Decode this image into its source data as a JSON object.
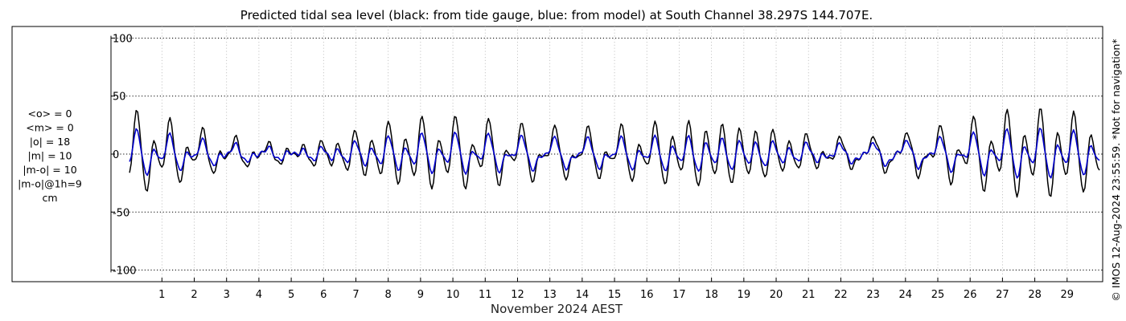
{
  "chart_data": {
    "type": "line",
    "title": "Predicted tidal sea level (black: from tide gauge, blue: from model) at South Channel 38.297S 144.707E.",
    "xlabel": "November 2024 AEST",
    "ylabel": "",
    "ylim": [
      -110,
      110
    ],
    "xlim": [
      -0.65,
      30.1
    ],
    "yticks": [
      -100,
      -50,
      0,
      50,
      100
    ],
    "ytick_labels": [
      "-100",
      "-50",
      "0",
      "50",
      "100"
    ],
    "xticks": [
      1,
      2,
      3,
      4,
      5,
      6,
      7,
      8,
      9,
      10,
      11,
      12,
      13,
      14,
      15,
      16,
      17,
      18,
      19,
      20,
      21,
      22,
      23,
      24,
      25,
      26,
      27,
      28,
      29
    ],
    "xtick_labels": [
      "1",
      "2",
      "3",
      "4",
      "5",
      "6",
      "7",
      "8",
      "9",
      "10",
      "11",
      "12",
      "13",
      "14",
      "15",
      "16",
      "17",
      "18",
      "19",
      "20",
      "21",
      "22",
      "23",
      "24",
      "25",
      "26",
      "27",
      "28",
      "29"
    ],
    "grid": true,
    "data_start_day": 0.0,
    "data_end_day": 30.0,
    "data_step_days": 0.05,
    "series": [
      {
        "color": "#000000",
        "constituents": {
          "M2_base": 15,
          "M2_mod": 9,
          "S2": 4,
          "K1": 9,
          "O1": 6,
          "M4": 2.5,
          "M2_period_days": 0.5175,
          "S2_period_days": 0.5,
          "K1_period_days": 0.9973,
          "O1_period_days": 1.0758,
          "M4_period_days": 0.2588,
          "mod_period_days": 9.75,
          "mod_peak_day": 18.5,
          "phase_offset_day": 0.25
        }
      },
      {
        "color": "#0000cc",
        "constituents": {
          "M2_base": 7.5,
          "M2_mod": 4.5,
          "S2": 2,
          "K1": 6,
          "O1": 4,
          "M4": 2,
          "M2_period_days": 0.5175,
          "S2_period_days": 0.5,
          "K1_period_days": 0.9973,
          "O1_period_days": 1.0758,
          "M4_period_days": 0.2588,
          "mod_period_days": 9.75,
          "mod_peak_day": 18.5,
          "phase_offset_day": 0.25
        }
      }
    ],
    "stats": [
      "<o> = 0",
      "<m> = 0",
      "|o| = 18",
      "|m| = 10",
      "|m-o| = 10",
      "|m-o|@1h=9",
      "cm"
    ],
    "credit": "© IMOS 12-Aug-2024 23:55:59. *Not for navigation*"
  }
}
